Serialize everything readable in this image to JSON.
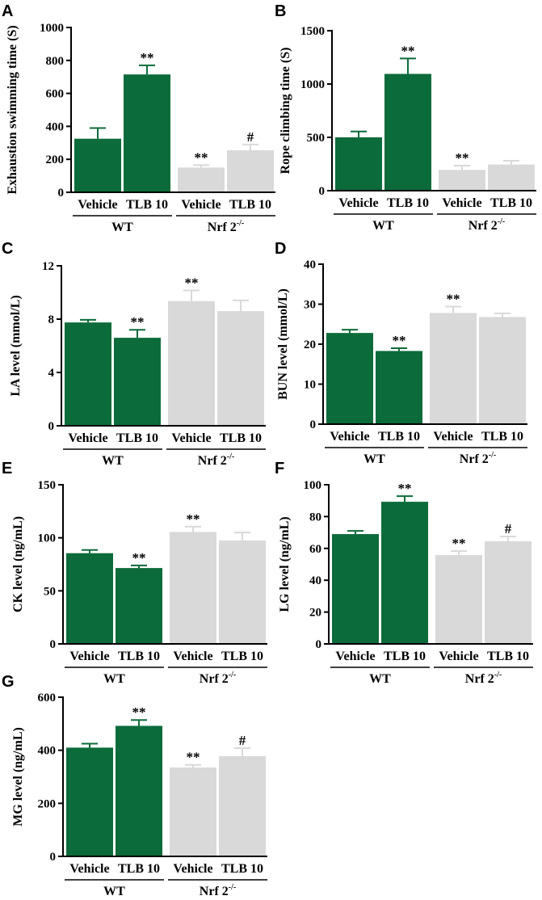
{
  "colors": {
    "wt": "#0c6b3a",
    "nrf2": "#d9d9d9",
    "axis": "#000000"
  },
  "groups": {
    "wt": "WT",
    "nrf2_base": "Nrf 2",
    "nrf2_sup": "-/-"
  },
  "chart_data": [
    {
      "panel": "A",
      "type": "bar",
      "ylabel": "Exhaustion swimming time (S)",
      "ylim": [
        0,
        1000
      ],
      "yticks": [
        0,
        200,
        400,
        600,
        800,
        1000
      ],
      "categories": [
        "Vehicle",
        "TLB 10",
        "Vehicle",
        "TLB 10"
      ],
      "values": [
        325,
        715,
        150,
        255
      ],
      "errors": [
        65,
        55,
        15,
        35
      ],
      "group_of": [
        "wt",
        "wt",
        "nrf2",
        "nrf2"
      ],
      "sig": [
        "",
        "**",
        "**",
        "#"
      ]
    },
    {
      "panel": "B",
      "type": "bar",
      "ylabel": "Rope climbing time (S)",
      "ylim": [
        0,
        1500
      ],
      "yticks": [
        0,
        500,
        1000,
        1500
      ],
      "categories": [
        "Vehicle",
        "TLB 10",
        "Vehicle",
        "TLB 10"
      ],
      "values": [
        500,
        1095,
        195,
        245
      ],
      "errors": [
        55,
        145,
        40,
        35
      ],
      "group_of": [
        "wt",
        "wt",
        "nrf2",
        "nrf2"
      ],
      "sig": [
        "",
        "**",
        "**",
        ""
      ]
    },
    {
      "panel": "C",
      "type": "bar",
      "ylabel": "LA level (mmol/L)",
      "ylim": [
        0,
        12
      ],
      "yticks": [
        0,
        4,
        8,
        12
      ],
      "categories": [
        "Vehicle",
        "TLB 10",
        "Vehicle",
        "TLB 10"
      ],
      "values": [
        7.75,
        6.6,
        9.35,
        8.6
      ],
      "errors": [
        0.2,
        0.6,
        0.8,
        0.8
      ],
      "group_of": [
        "wt",
        "wt",
        "nrf2",
        "nrf2"
      ],
      "sig": [
        "",
        "**",
        "**",
        ""
      ]
    },
    {
      "panel": "D",
      "type": "bar",
      "ylabel": "BUN level (mmol/L)",
      "ylim": [
        0,
        40
      ],
      "yticks": [
        0,
        10,
        20,
        30,
        40
      ],
      "categories": [
        "Vehicle",
        "TLB 10",
        "Vehicle",
        "TLB 10"
      ],
      "values": [
        22.8,
        18.3,
        27.8,
        26.8
      ],
      "errors": [
        0.8,
        0.7,
        1.6,
        0.9
      ],
      "group_of": [
        "wt",
        "wt",
        "nrf2",
        "nrf2"
      ],
      "sig": [
        "",
        "**",
        "**",
        ""
      ]
    },
    {
      "panel": "E",
      "type": "bar",
      "ylabel": "CK level (ng/mL)",
      "ylim": [
        0,
        150
      ],
      "yticks": [
        0,
        50,
        100,
        150
      ],
      "categories": [
        "Vehicle",
        "TLB 10",
        "Vehicle",
        "TLB 10"
      ],
      "values": [
        85.5,
        71.5,
        105.5,
        97.5
      ],
      "errors": [
        3,
        2.5,
        5,
        7.5
      ],
      "group_of": [
        "wt",
        "wt",
        "nrf2",
        "nrf2"
      ],
      "sig": [
        "",
        "**",
        "**",
        ""
      ]
    },
    {
      "panel": "F",
      "type": "bar",
      "ylabel": "LG level (ng/mL)",
      "ylim": [
        0,
        100
      ],
      "yticks": [
        0,
        20,
        40,
        60,
        80,
        100
      ],
      "categories": [
        "Vehicle",
        "TLB 10",
        "Vehicle",
        "TLB 10"
      ],
      "values": [
        69,
        89.3,
        55.8,
        64.5
      ],
      "errors": [
        2,
        3.5,
        2.5,
        3
      ],
      "group_of": [
        "wt",
        "wt",
        "nrf2",
        "nrf2"
      ],
      "sig": [
        "",
        "**",
        "**",
        "#"
      ]
    },
    {
      "panel": "G",
      "type": "bar",
      "ylabel": "MG level (ng/mL)",
      "ylim": [
        0,
        600
      ],
      "yticks": [
        0,
        200,
        400,
        600
      ],
      "categories": [
        "Vehicle",
        "TLB 10",
        "Vehicle",
        "TLB 10"
      ],
      "values": [
        410,
        492,
        335,
        378
      ],
      "errors": [
        15,
        22,
        10,
        30
      ],
      "group_of": [
        "wt",
        "wt",
        "nrf2",
        "nrf2"
      ],
      "sig": [
        "",
        "**",
        "**",
        "#"
      ]
    }
  ]
}
